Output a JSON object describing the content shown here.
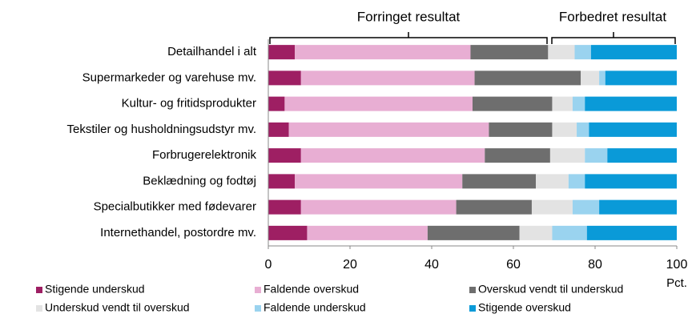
{
  "chart_data": {
    "type": "stacked_barh",
    "annotations": [
      "Forringet resultat",
      "Forbedret resultat"
    ],
    "x_label": "Pct.",
    "categories": [
      "Detailhandel i alt",
      "Supermarkeder og varehuse mv.",
      "Kultur- og fritidsprodukter",
      "Tekstiler og husholdningsudstyr mv.",
      "Forbrugerelektronik",
      "Beklædning og fodtøj",
      "Specialbutikker med fødevarer",
      "Internethandel, postordre mv."
    ],
    "series": [
      {
        "name": "Stigende underskud",
        "color": "#9e1f63",
        "values": [
          6.5,
          8,
          4,
          5,
          8,
          6.5,
          8,
          9.5
        ]
      },
      {
        "name": "Faldende overskud",
        "color": "#e8aed3",
        "values": [
          43,
          42.5,
          46,
          49,
          45,
          41,
          38,
          29.5
        ]
      },
      {
        "name": "Overskud vendt til underskud",
        "color": "#6e6e6e",
        "values": [
          19,
          26,
          19.5,
          15.5,
          16,
          18,
          18.5,
          22.5
        ]
      },
      {
        "name": "Underskud vendt til overskud",
        "color": "#e3e3e3",
        "values": [
          6.5,
          4.5,
          5,
          6,
          8.5,
          8,
          10,
          8
        ]
      },
      {
        "name": "Faldende underskud",
        "color": "#9ad3ef",
        "values": [
          4,
          1.5,
          3,
          3,
          5.5,
          4,
          6.5,
          8.5
        ]
      },
      {
        "name": "Stigende overskud",
        "color": "#0a9ad8",
        "values": [
          21,
          17.5,
          22.5,
          21.5,
          17,
          22.5,
          19,
          22
        ]
      }
    ],
    "xlim": [
      0,
      100
    ],
    "xticks": [
      0,
      20,
      40,
      60,
      80,
      100
    ],
    "legend": "bottom"
  }
}
